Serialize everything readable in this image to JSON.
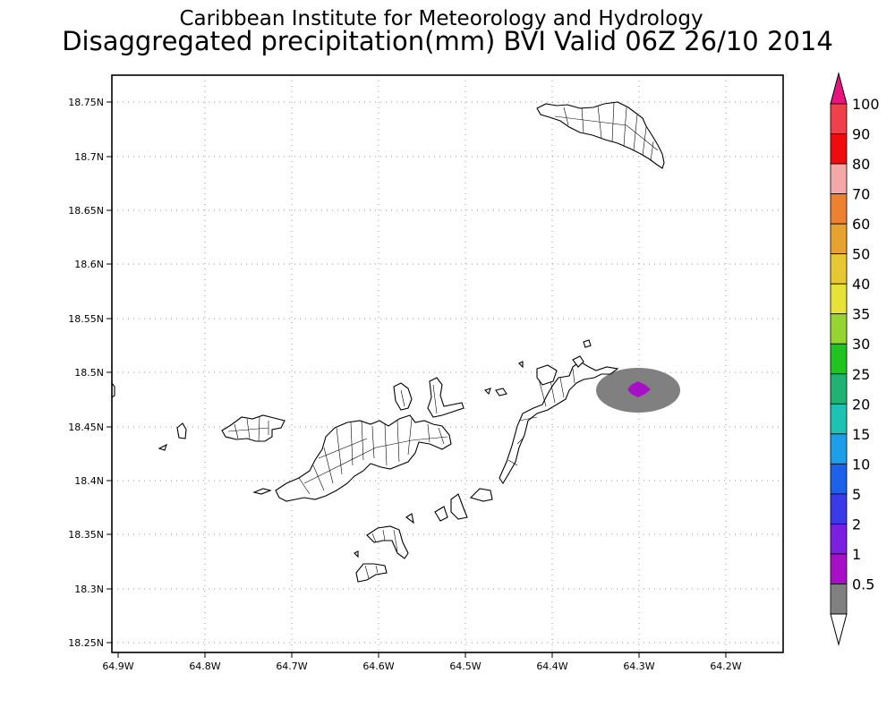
{
  "title": {
    "line1": "Caribbean Institute for Meteorology and Hydrology",
    "line2": "Disaggregated precipitation(mm) BVI Valid 06Z 26/10 2014"
  },
  "axes": {
    "lon_ticks": [
      "64.9W",
      "64.8W",
      "64.7W",
      "64.6W",
      "64.5W",
      "64.4W",
      "64.3W",
      "64.2W"
    ],
    "lat_ticks": [
      "18.75N",
      "18.7N",
      "18.65N",
      "18.6N",
      "18.55N",
      "18.5N",
      "18.45N",
      "18.4N",
      "18.35N",
      "18.3N",
      "18.25N"
    ]
  },
  "colorbar": {
    "labels": [
      "100",
      "90",
      "80",
      "70",
      "60",
      "50",
      "40",
      "35",
      "30",
      "25",
      "20",
      "15",
      "10",
      "5",
      "2",
      "1",
      "0.5"
    ],
    "colors": {
      "top_arrow": "#e8137f",
      "bins_top_to_bottom": [
        "#f0404a",
        "#f00c0c",
        "#f4a8a8",
        "#ee8130",
        "#e6a330",
        "#e8c832",
        "#e6e238",
        "#96d432",
        "#20c420",
        "#20b272",
        "#1cc2b2",
        "#1c9ee8",
        "#1c62e8",
        "#3a3ae8",
        "#7a20e0",
        "#a810c8",
        "#808080"
      ],
      "bottom_arrow": "#ffffff"
    }
  },
  "precip_cell": {
    "lon": -64.3,
    "lat": 18.485,
    "outer_class": "0.5-1",
    "outer_color": "#808080",
    "inner_class": "1-2",
    "inner_color": "#a810c8"
  }
}
